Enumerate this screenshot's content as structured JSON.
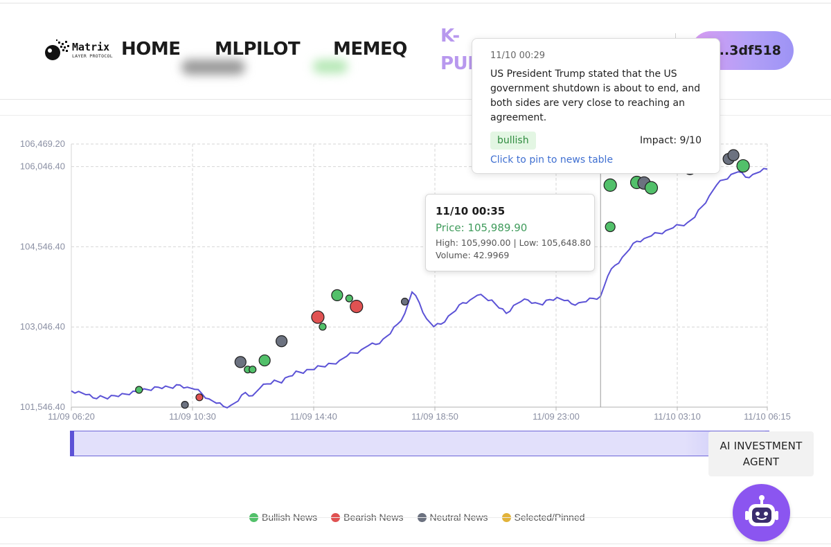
{
  "header": {
    "logo": {
      "name": "Matrix",
      "subtitle": "LAYER PROTOCOL"
    },
    "nav": [
      {
        "label": "HOME"
      },
      {
        "label": "MLPILOT"
      },
      {
        "label": "MEMEQ"
      },
      {
        "label": "K-PULSE"
      }
    ],
    "wallet": {
      "address": "0x...3df518"
    }
  },
  "chart_data": {
    "type": "line",
    "y_ticks": [
      "101,546.40",
      "103,046.40",
      "104,546.40",
      "106,046.40",
      "106,469.20"
    ],
    "ylim": [
      101546.4,
      106469.2
    ],
    "x_ticks": [
      "11/09 06:20",
      "11/09 10:30",
      "11/09 14:40",
      "11/09 18:50",
      "11/09 23:00",
      "11/10 03:10",
      "11/10 06:15"
    ],
    "grid": true,
    "series": [
      {
        "t_hours": [
          0,
          0.25,
          0.5,
          0.75,
          1,
          1.25,
          1.5,
          1.75,
          2,
          2.25,
          2.5,
          2.75,
          3,
          3.25,
          3.5,
          3.75,
          4,
          4.25,
          4.5,
          4.75,
          5,
          5.25,
          5.5,
          5.75,
          6,
          6.25,
          6.5,
          6.75,
          7,
          7.25,
          7.5,
          7.75,
          8,
          8.25,
          8.5,
          8.75,
          9,
          9.25,
          9.5,
          9.75,
          10,
          10.25,
          10.5,
          10.75,
          11,
          11.25,
          11.5,
          11.75,
          12,
          12.25,
          12.5,
          12.75,
          13,
          13.25,
          13.5,
          13.75,
          14,
          14.25,
          14.5,
          14.75,
          15,
          15.25,
          15.5,
          15.75,
          16,
          16.25,
          16.5,
          16.75,
          17,
          17.25,
          17.5,
          17.75,
          18,
          18.25,
          18.5,
          18.75,
          19,
          19.25,
          19.5,
          19.75,
          20,
          20.25,
          20.5,
          20.75,
          21,
          21.25,
          21.5,
          21.75,
          22,
          22.25,
          22.5,
          22.75,
          23,
          23.25,
          23.5,
          23.75,
          24
        ],
        "values": [
          101850,
          101840,
          101780,
          101720,
          101760,
          101700,
          101760,
          101800,
          101780,
          101840,
          101890,
          101860,
          101920,
          101940,
          101900,
          101960,
          101920,
          101880,
          101800,
          101700,
          101620,
          101560,
          101580,
          101660,
          101820,
          101760,
          101900,
          101980,
          102050,
          102000,
          102120,
          102220,
          102180,
          102250,
          102320,
          102300,
          102360,
          102420,
          102500,
          102560,
          102620,
          102700,
          102720,
          102820,
          102920,
          103100,
          103300,
          103700,
          103500,
          103200,
          103050,
          103100,
          103250,
          103350,
          103500,
          103550,
          103640,
          103600,
          103550,
          103400,
          103300,
          103450,
          103520,
          103550,
          103500,
          103460,
          103560,
          103600,
          103540,
          103480,
          103500,
          103520,
          103580,
          103620,
          104000,
          104200,
          104350,
          104500,
          104650,
          104700,
          104750,
          104800,
          104850,
          104900,
          104950,
          105000,
          105100,
          105300,
          105500,
          105700,
          105800,
          105900,
          105950,
          105850,
          105900,
          105950,
          106000,
          105980,
          105989.9
        ]
      }
    ],
    "news_markers": [
      {
        "time": "11/09 08:40",
        "price": 101870,
        "sentiment": "bullish"
      },
      {
        "time": "11/09 10:15",
        "price": 101590,
        "sentiment": "neutral"
      },
      {
        "time": "11/09 10:45",
        "price": 101730,
        "sentiment": "bearish"
      },
      {
        "time": "11/09 12:10",
        "price": 102390,
        "sentiment": "neutral"
      },
      {
        "time": "11/09 12:25",
        "price": 102250,
        "sentiment": "bullish"
      },
      {
        "time": "11/09 12:35",
        "price": 102250,
        "sentiment": "bullish"
      },
      {
        "time": "11/09 13:00",
        "price": 102420,
        "sentiment": "bullish"
      },
      {
        "time": "11/09 13:35",
        "price": 102780,
        "sentiment": "neutral"
      },
      {
        "time": "11/09 14:50",
        "price": 103230,
        "sentiment": "bearish"
      },
      {
        "time": "11/09 15:00",
        "price": 103050,
        "sentiment": "bullish"
      },
      {
        "time": "11/09 15:30",
        "price": 103640,
        "sentiment": "bullish"
      },
      {
        "time": "11/09 15:55",
        "price": 103580,
        "sentiment": "bullish"
      },
      {
        "time": "11/09 16:10",
        "price": 103430,
        "sentiment": "bearish"
      },
      {
        "time": "11/09 17:50",
        "price": 103520,
        "sentiment": "neutral"
      },
      {
        "time": "11/10 00:55",
        "price": 104920,
        "sentiment": "bullish"
      },
      {
        "time": "11/10 00:55",
        "price": 105700,
        "sentiment": "bullish"
      },
      {
        "time": "11/10 01:50",
        "price": 105750,
        "sentiment": "bullish"
      },
      {
        "time": "11/10 02:05",
        "price": 105740,
        "sentiment": "neutral"
      },
      {
        "time": "11/10 02:20",
        "price": 105650,
        "sentiment": "bullish"
      },
      {
        "time": "11/10 03:40",
        "price": 106000,
        "sentiment": "neutral"
      },
      {
        "time": "11/10 05:00",
        "price": 106190,
        "sentiment": "neutral"
      },
      {
        "time": "11/10 05:10",
        "price": 106260,
        "sentiment": "neutral"
      },
      {
        "time": "11/10 05:30",
        "price": 106060,
        "sentiment": "bullish"
      }
    ],
    "legend": [
      {
        "label": "Bullish News",
        "color": "#52c06a"
      },
      {
        "label": "Bearish News",
        "color": "#e05252"
      },
      {
        "label": "Neutral News",
        "color": "#6c7280"
      },
      {
        "label": "Selected/Pinned",
        "color": "#e2b33a"
      }
    ]
  },
  "news_tooltip": {
    "time": "11/10 00:29",
    "text": "US President Trump stated that the US government shutdown is about to end, and both sides are very close to reaching an agreement.",
    "sentiment": "bullish",
    "impact": "Impact: 9/10",
    "link": "Click to pin to news table"
  },
  "price_tooltip": {
    "time": "11/10 00:35",
    "price": "Price: 105,989.90",
    "high_low": "High: 105,990.00 | Low: 105,648.80",
    "volume": "Volume: 42.9969"
  },
  "ai_agent": {
    "label": "AI INVESTMENT AGENT"
  },
  "colors": {
    "line": "#5b52d6",
    "accent": "#8b55f0",
    "bullish": "#52c06a",
    "bearish": "#e05252",
    "neutral": "#6c7280",
    "pinned": "#e2b33a"
  }
}
